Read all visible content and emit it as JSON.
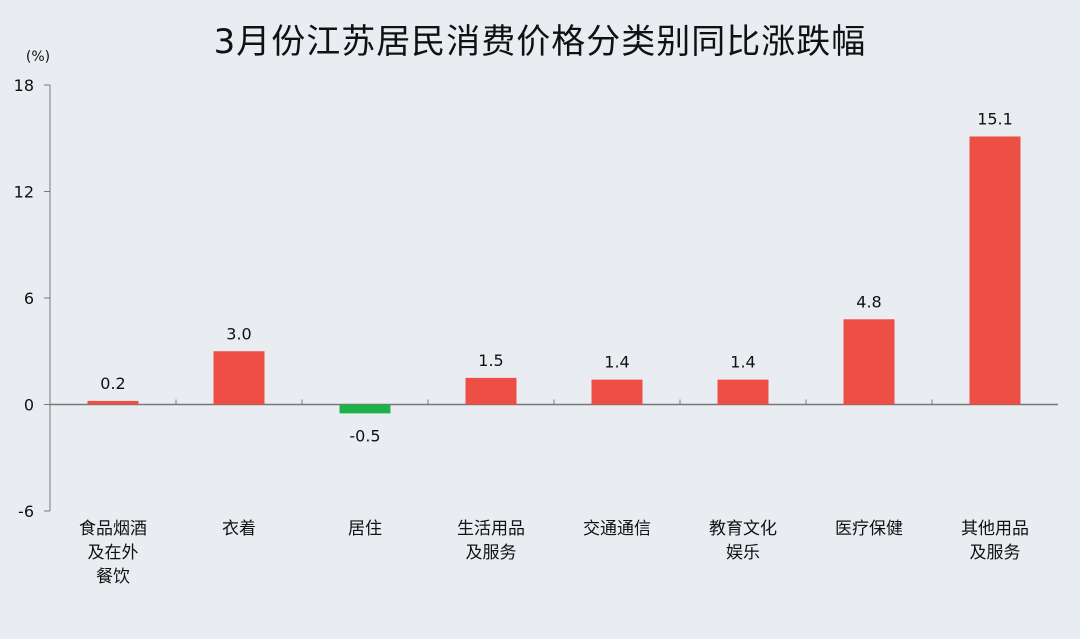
{
  "chart_data": {
    "type": "bar",
    "title": "3月份江苏居民消费价格分类别同比涨跌幅",
    "unit_label": "(%)",
    "ylim": [
      -6,
      18
    ],
    "yticks": [
      -6,
      0,
      6,
      12,
      18
    ],
    "categories": [
      [
        "食品烟酒",
        "及在外",
        "餐饮"
      ],
      [
        "衣着"
      ],
      [
        "居住"
      ],
      [
        "生活用品",
        "及服务"
      ],
      [
        "交通通信"
      ],
      [
        "教育文化",
        "娱乐"
      ],
      [
        "医疗保健"
      ],
      [
        "其他用品",
        "及服务"
      ]
    ],
    "values": [
      0.2,
      3.0,
      -0.5,
      1.5,
      1.4,
      1.4,
      4.8,
      15.1
    ],
    "value_labels": [
      "0.2",
      "3.0",
      "-0.5",
      "1.5",
      "1.4",
      "1.4",
      "4.8",
      "15.1"
    ],
    "colors": {
      "positive": "#ee4f45",
      "negative": "#1fb24a"
    },
    "grid": false,
    "legend": "none"
  }
}
